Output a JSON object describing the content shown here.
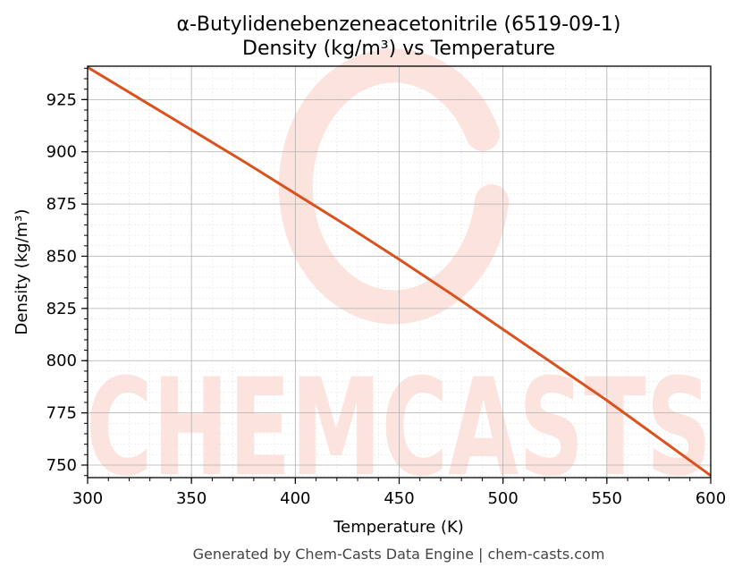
{
  "chart_data": {
    "type": "line",
    "title": "α-Butylidenebenzeneacetonitrile (6519-09-1)",
    "subtitle": "Density (kg/m³) vs Temperature",
    "xlabel": "Temperature (K)",
    "ylabel": "Density (kg/m³)",
    "xlim": [
      300,
      600
    ],
    "ylim": [
      744,
      941
    ],
    "xticks": [
      300,
      350,
      400,
      450,
      500,
      550,
      600
    ],
    "yticks": [
      750,
      775,
      800,
      825,
      850,
      875,
      900,
      925
    ],
    "grid": true,
    "line_color": "#d9531e",
    "series": [
      {
        "x": [
          300,
          325,
          350,
          375,
          400,
          425,
          450,
          475,
          500,
          525,
          550,
          575,
          600
        ],
        "y": [
          940.5,
          925.5,
          910.5,
          895.5,
          880,
          864.5,
          848.5,
          832,
          815,
          798,
          781,
          763,
          745
        ]
      }
    ]
  },
  "watermark": {
    "text": "CHEMCASTS",
    "color": "#fde3dd"
  },
  "footer": "Generated by Chem-Casts Data Engine | chem-casts.com"
}
